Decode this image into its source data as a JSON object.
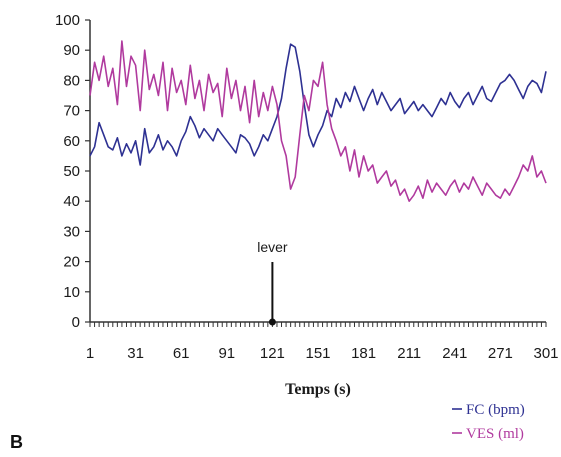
{
  "chart_data": {
    "type": "line",
    "xlabel": "Temps (s)",
    "ylabel": "",
    "xlim": [
      1,
      301
    ],
    "ylim": [
      0,
      100
    ],
    "x_ticks": [
      "1",
      "31",
      "61",
      "91",
      "121",
      "151",
      "181",
      "211",
      "241",
      "271",
      "301"
    ],
    "y_ticks": [
      "0",
      "10",
      "20",
      "30",
      "40",
      "50",
      "60",
      "70",
      "80",
      "90",
      "100"
    ],
    "grid": false,
    "legend_position": "bottom-right",
    "panel_label": "B",
    "annotation": {
      "text": "lever",
      "x": 121,
      "y": 0
    },
    "series": [
      {
        "name": "FC (bpm)",
        "color": "#2e3192",
        "x": [
          1,
          4,
          7,
          10,
          13,
          16,
          19,
          22,
          25,
          28,
          31,
          34,
          37,
          40,
          43,
          46,
          49,
          52,
          55,
          58,
          61,
          64,
          67,
          70,
          73,
          76,
          79,
          82,
          85,
          88,
          91,
          94,
          97,
          100,
          103,
          106,
          109,
          112,
          115,
          118,
          121,
          124,
          127,
          130,
          133,
          136,
          139,
          142,
          145,
          148,
          151,
          154,
          157,
          160,
          163,
          166,
          169,
          172,
          175,
          178,
          181,
          184,
          187,
          190,
          193,
          196,
          199,
          202,
          205,
          208,
          211,
          214,
          217,
          220,
          223,
          226,
          229,
          232,
          235,
          238,
          241,
          244,
          247,
          250,
          253,
          256,
          259,
          262,
          265,
          268,
          271,
          274,
          277,
          280,
          283,
          286,
          289,
          292,
          295,
          298,
          301
        ],
        "y": [
          55,
          58,
          66,
          62,
          58,
          57,
          61,
          55,
          59,
          56,
          60,
          52,
          64,
          56,
          58,
          62,
          57,
          60,
          58,
          55,
          60,
          63,
          68,
          65,
          61,
          64,
          62,
          60,
          64,
          62,
          60,
          58,
          56,
          62,
          61,
          59,
          55,
          58,
          62,
          60,
          64,
          68,
          74,
          84,
          92,
          91,
          83,
          72,
          62,
          58,
          62,
          65,
          70,
          68,
          74,
          71,
          76,
          73,
          78,
          74,
          70,
          74,
          77,
          72,
          76,
          73,
          70,
          72,
          74,
          69,
          71,
          73,
          70,
          72,
          70,
          68,
          71,
          74,
          72,
          76,
          73,
          71,
          74,
          76,
          72,
          75,
          78,
          74,
          73,
          76,
          79,
          80,
          82,
          80,
          77,
          74,
          78,
          80,
          79,
          76,
          83
        ]
      },
      {
        "name": "VES (ml)",
        "color": "#b03a9e",
        "x": [
          1,
          4,
          7,
          10,
          13,
          16,
          19,
          22,
          25,
          28,
          31,
          34,
          37,
          40,
          43,
          46,
          49,
          52,
          55,
          58,
          61,
          64,
          67,
          70,
          73,
          76,
          79,
          82,
          85,
          88,
          91,
          94,
          97,
          100,
          103,
          106,
          109,
          112,
          115,
          118,
          121,
          124,
          127,
          130,
          133,
          136,
          139,
          142,
          145,
          148,
          151,
          154,
          157,
          160,
          163,
          166,
          169,
          172,
          175,
          178,
          181,
          184,
          187,
          190,
          193,
          196,
          199,
          202,
          205,
          208,
          211,
          214,
          217,
          220,
          223,
          226,
          229,
          232,
          235,
          238,
          241,
          244,
          247,
          250,
          253,
          256,
          259,
          262,
          265,
          268,
          271,
          274,
          277,
          280,
          283,
          286,
          289,
          292,
          295,
          298,
          301
        ],
        "y": [
          75,
          86,
          80,
          88,
          78,
          84,
          72,
          93,
          78,
          88,
          85,
          70,
          90,
          77,
          82,
          75,
          86,
          70,
          84,
          76,
          80,
          72,
          85,
          74,
          80,
          70,
          82,
          76,
          79,
          68,
          84,
          74,
          80,
          70,
          78,
          66,
          80,
          68,
          76,
          70,
          78,
          72,
          60,
          55,
          44,
          48,
          62,
          75,
          70,
          80,
          78,
          86,
          72,
          64,
          60,
          55,
          58,
          50,
          57,
          48,
          55,
          50,
          52,
          46,
          48,
          50,
          45,
          47,
          42,
          44,
          40,
          42,
          45,
          41,
          47,
          43,
          46,
          44,
          42,
          45,
          47,
          43,
          46,
          44,
          48,
          45,
          42,
          46,
          44,
          42,
          41,
          44,
          42,
          45,
          48,
          52,
          50,
          55,
          48,
          50,
          46
        ]
      }
    ]
  }
}
